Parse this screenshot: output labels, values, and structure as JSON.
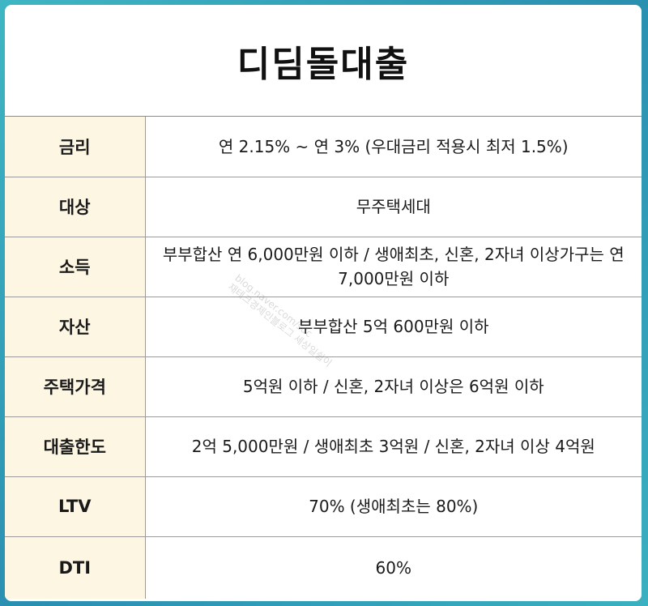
{
  "title": "디딤돌대출",
  "rows": [
    {
      "label": "금리",
      "value": "연 2.15% ~ 연 3% (우대금리 적용시 최저 1.5%)"
    },
    {
      "label": "대상",
      "value": "무주택세대"
    },
    {
      "label": "소득",
      "value": "부부합산 연 6,000만원 이하 / 생애최초, 신혼, 2자녀 이상가구는 연 7,000만원 이하"
    },
    {
      "label": "자산",
      "value": "부부합산 5억 600만원 이하"
    },
    {
      "label": "주택가격",
      "value": "5억원 이하 / 신혼, 2자녀 이상은 6억원 이하"
    },
    {
      "label": "대출한도",
      "value": "2억 5,000만원 / 생애최초 3억원 / 신혼, 2자녀 이상 4억원"
    },
    {
      "label": "LTV",
      "value": "70% (생애최초는 80%)"
    },
    {
      "label": "DTI",
      "value": "60%"
    }
  ],
  "watermark": {
    "line1": "blog.naver.com/sdc",
    "line2": "재테크경제인블로그 세상일쉽이"
  }
}
